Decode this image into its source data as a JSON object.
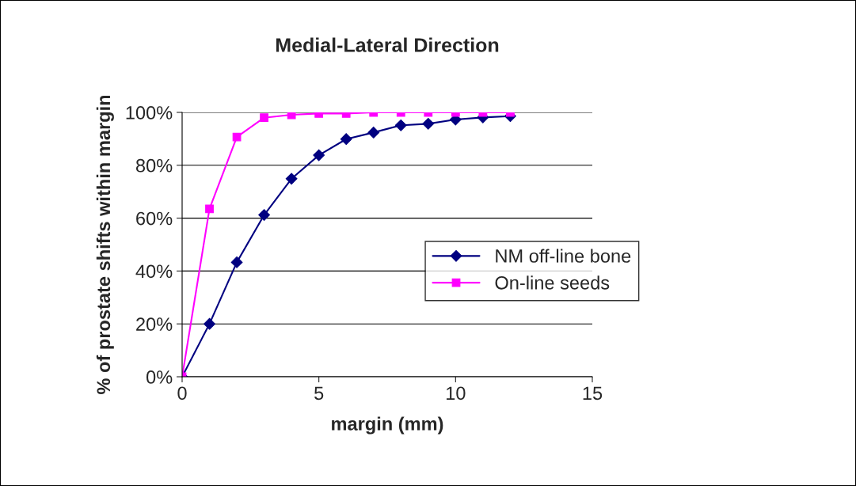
{
  "chart_data": {
    "type": "line",
    "title": "Medial-Lateral Direction",
    "xlabel": "margin (mm)",
    "ylabel": "% of prostate shifts within margin",
    "x": [
      0,
      1,
      2,
      3,
      4,
      5,
      6,
      7,
      8,
      9,
      10,
      11,
      12
    ],
    "series": [
      {
        "name": "NM off-line bone",
        "color": "#000080",
        "marker": "diamond",
        "values": [
          0,
          20,
          43.3,
          61.2,
          74.9,
          83.8,
          89.9,
          92.4,
          95.1,
          95.7,
          97.3,
          98.1,
          98.6
        ]
      },
      {
        "name": "On-line seeds",
        "color": "#ff00ff",
        "marker": "square",
        "values": [
          0,
          63.5,
          90.7,
          98,
          99.1,
          99.6,
          99.6,
          100,
          100,
          100,
          100,
          100,
          100
        ]
      }
    ],
    "xlim": [
      0,
      15
    ],
    "xticks": [
      0,
      5,
      10,
      15
    ],
    "ylim": [
      0,
      100
    ],
    "yticks": [
      {
        "value": 0,
        "label": "0%"
      },
      {
        "value": 20,
        "label": "20%"
      },
      {
        "value": 40,
        "label": "40%"
      },
      {
        "value": 60,
        "label": "60%"
      },
      {
        "value": 80,
        "label": "80%"
      },
      {
        "value": 100,
        "label": "100%"
      }
    ],
    "grid": "y",
    "legend": "right",
    "line_style": "solid"
  }
}
